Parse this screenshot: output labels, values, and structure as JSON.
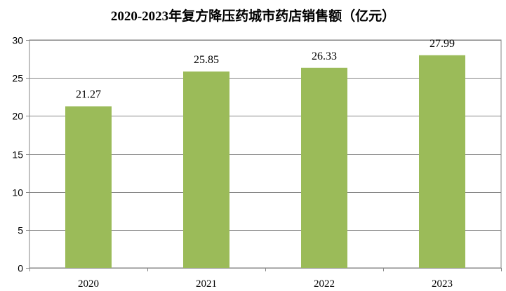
{
  "chart_data": {
    "type": "bar",
    "title": "2020-2023年复方降压药城市药店销售额（亿元）",
    "categories": [
      "2020",
      "2021",
      "2022",
      "2023"
    ],
    "values": [
      21.27,
      25.85,
      26.33,
      27.99
    ],
    "data_labels": [
      "21.27",
      "25.85",
      "26.33",
      "27.99"
    ],
    "xlabel": "",
    "ylabel": "",
    "ylim": [
      0,
      30
    ],
    "yticks": [
      "0",
      "5",
      "10",
      "15",
      "20",
      "25",
      "30"
    ],
    "grid": true,
    "legend": "none",
    "bar_color": "#9BBB59"
  }
}
